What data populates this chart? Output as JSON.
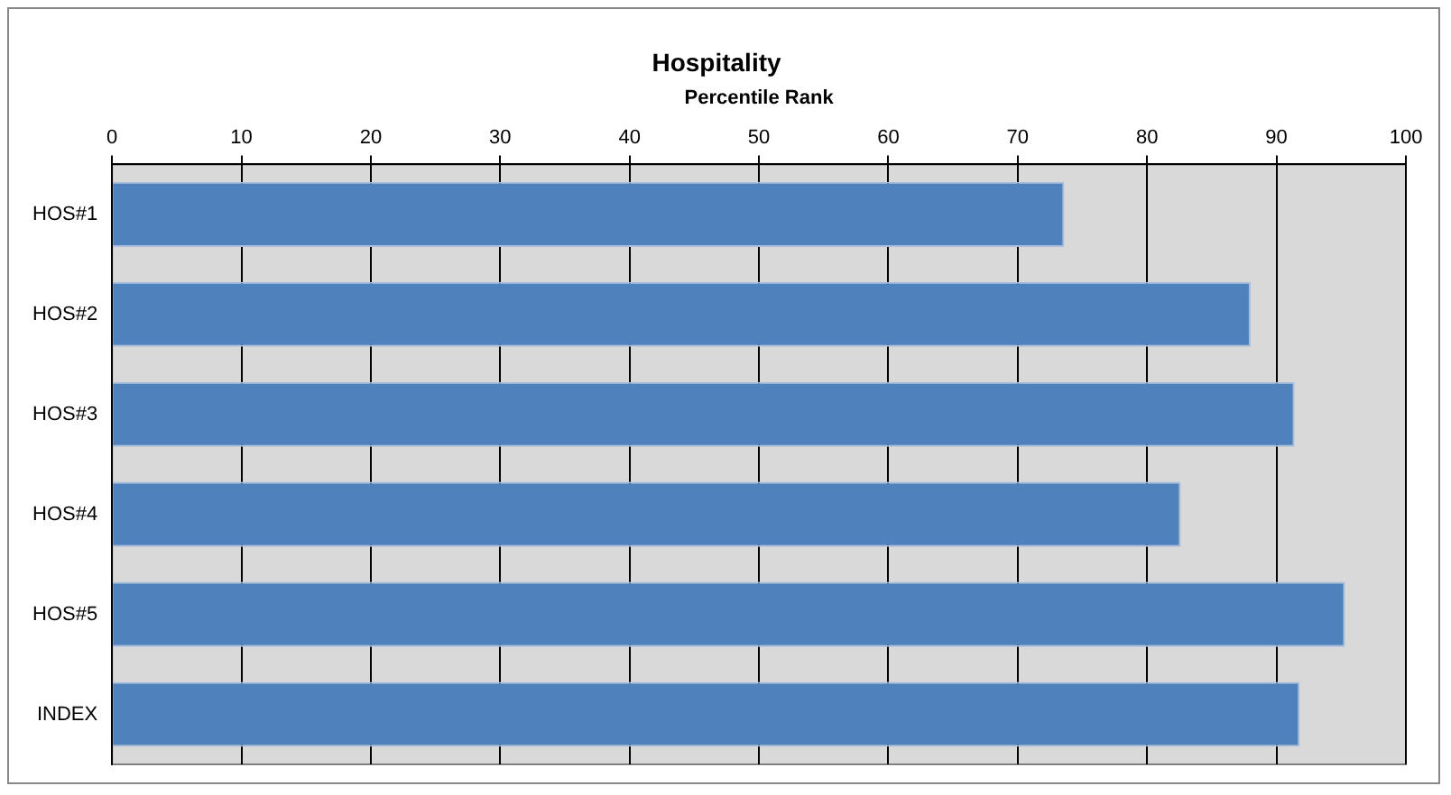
{
  "chart_data": {
    "type": "bar",
    "orientation": "horizontal",
    "title": "Hospitality",
    "xlabel": "Percentile Rank",
    "categories": [
      "HOS#1",
      "HOS#2",
      "HOS#3",
      "HOS#4",
      "HOS#5",
      "INDEX"
    ],
    "values": [
      73.6,
      88.0,
      91.4,
      82.6,
      95.3,
      91.8
    ],
    "color": "#4f81bd",
    "xlim": [
      0,
      100
    ],
    "xticks": [
      0,
      10,
      20,
      30,
      40,
      50,
      60,
      70,
      80,
      90,
      100
    ],
    "grid": "x",
    "legend": false
  }
}
